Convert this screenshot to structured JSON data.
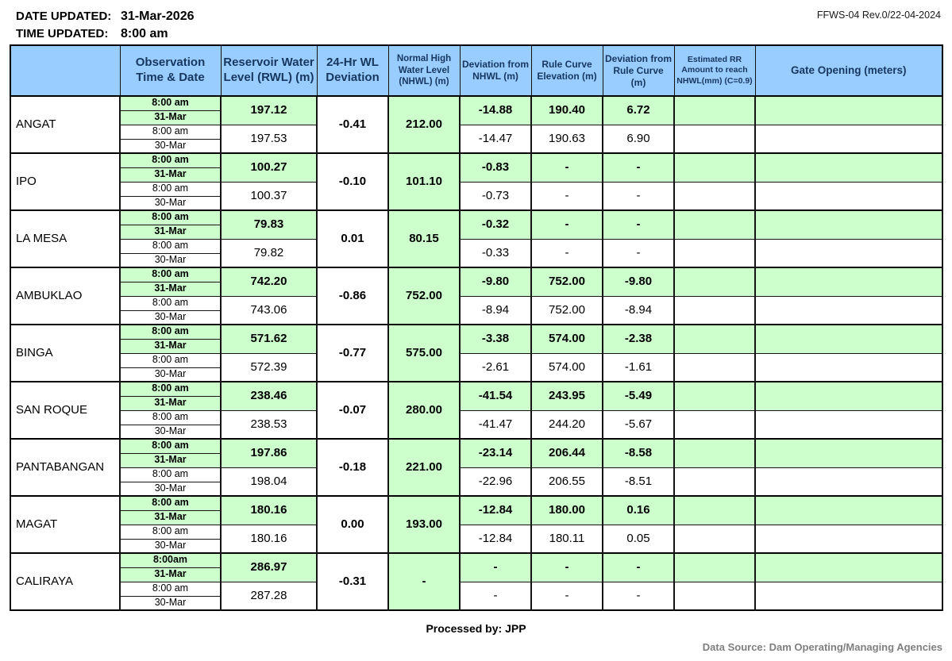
{
  "meta": {
    "date_updated_label": "DATE UPDATED:",
    "date_updated": "31-Mar-2026",
    "time_updated_label": "TIME UPDATED:",
    "time_updated": "8:00 am",
    "form_ref": "FFWS-04 Rev.0/22-04-2024",
    "processed_by": "Processed by: JPP",
    "data_source": "Data Source: Dam Operating/Managing Agencies"
  },
  "colors": {
    "header_bg": "#99ccff",
    "header_text": "#17375e",
    "highlight_green": "#ccffcc",
    "border": "#000000",
    "source_text": "#7f7f7f"
  },
  "table": {
    "headers": [
      {
        "label": "",
        "name": "col-header-dam"
      },
      {
        "label": "Observation Time & Date",
        "name": "col-header-observation-time-date"
      },
      {
        "label": "Reservoir Water Level (RWL) (m)",
        "name": "col-header-rwl"
      },
      {
        "label": "24-Hr WL Deviation",
        "name": "col-header-24hr-wl-deviation"
      },
      {
        "label": "Normal High Water Level (NHWL) (m)",
        "name": "col-header-nhwl"
      },
      {
        "label": "Deviation from NHWL (m)",
        "name": "col-header-deviation-from-nhwl"
      },
      {
        "label": "Rule Curve Elevation (m)",
        "name": "col-header-rule-curve-elevation"
      },
      {
        "label": "Deviation from Rule Curve (m)",
        "name": "col-header-deviation-from-rule-curve"
      },
      {
        "label": "Estimated RR Amount to reach NHWL(mm) (C=0.9)",
        "name": "col-header-estimated-rr"
      },
      {
        "label": "Gate Opening (meters)",
        "name": "col-header-gate-opening"
      }
    ],
    "rows": [
      {
        "dam": "ANGAT",
        "obs": [
          "8:00 am",
          "31-Mar",
          "8:00 am",
          "30-Mar"
        ],
        "rwl": [
          "197.12",
          "197.53"
        ],
        "wl_dev_24hr": "-0.41",
        "nhwl": "212.00",
        "dev_nhwl": [
          "-14.88",
          "-14.47"
        ],
        "rule_curve": [
          "190.40",
          "190.63"
        ],
        "dev_rule_curve": [
          "6.72",
          "6.90"
        ],
        "est_rr": [
          "",
          ""
        ],
        "gate": [
          "",
          ""
        ]
      },
      {
        "dam": "IPO",
        "obs": [
          "8:00 am",
          "31-Mar",
          "8:00 am",
          "30-Mar"
        ],
        "rwl": [
          "100.27",
          "100.37"
        ],
        "wl_dev_24hr": "-0.10",
        "nhwl": "101.10",
        "dev_nhwl": [
          "-0.83",
          "-0.73"
        ],
        "rule_curve": [
          "-",
          "-"
        ],
        "dev_rule_curve": [
          "-",
          "-"
        ],
        "est_rr": [
          "",
          ""
        ],
        "gate": [
          "",
          ""
        ]
      },
      {
        "dam": "LA MESA",
        "obs": [
          "8:00 am",
          "31-Mar",
          "8:00 am",
          "30-Mar"
        ],
        "rwl": [
          "79.83",
          "79.82"
        ],
        "wl_dev_24hr": "0.01",
        "nhwl": "80.15",
        "dev_nhwl": [
          "-0.32",
          "-0.33"
        ],
        "rule_curve": [
          "-",
          "-"
        ],
        "dev_rule_curve": [
          "-",
          "-"
        ],
        "est_rr": [
          "",
          ""
        ],
        "gate": [
          "",
          ""
        ]
      },
      {
        "dam": "AMBUKLAO",
        "obs": [
          "8:00 am",
          "31-Mar",
          "8:00 am",
          "30-Mar"
        ],
        "rwl": [
          "742.20",
          "743.06"
        ],
        "wl_dev_24hr": "-0.86",
        "nhwl": "752.00",
        "dev_nhwl": [
          "-9.80",
          "-8.94"
        ],
        "rule_curve": [
          "752.00",
          "752.00"
        ],
        "dev_rule_curve": [
          "-9.80",
          "-8.94"
        ],
        "est_rr": [
          "",
          ""
        ],
        "gate": [
          "",
          ""
        ]
      },
      {
        "dam": "BINGA",
        "obs": [
          "8:00 am",
          "31-Mar",
          "8:00 am",
          "30-Mar"
        ],
        "rwl": [
          "571.62",
          "572.39"
        ],
        "wl_dev_24hr": "-0.77",
        "nhwl": "575.00",
        "dev_nhwl": [
          "-3.38",
          "-2.61"
        ],
        "rule_curve": [
          "574.00",
          "574.00"
        ],
        "dev_rule_curve": [
          "-2.38",
          "-1.61"
        ],
        "est_rr": [
          "",
          ""
        ],
        "gate": [
          "",
          ""
        ]
      },
      {
        "dam": "SAN ROQUE",
        "obs": [
          "8:00 am",
          "31-Mar",
          "8:00 am",
          "30-Mar"
        ],
        "rwl": [
          "238.46",
          "238.53"
        ],
        "wl_dev_24hr": "-0.07",
        "nhwl": "280.00",
        "dev_nhwl": [
          "-41.54",
          "-41.47"
        ],
        "rule_curve": [
          "243.95",
          "244.20"
        ],
        "dev_rule_curve": [
          "-5.49",
          "-5.67"
        ],
        "est_rr": [
          "",
          ""
        ],
        "gate": [
          "",
          ""
        ]
      },
      {
        "dam": "PANTABANGAN",
        "obs": [
          "8:00 am",
          "31-Mar",
          "8:00 am",
          "30-Mar"
        ],
        "rwl": [
          "197.86",
          "198.04"
        ],
        "wl_dev_24hr": "-0.18",
        "nhwl": "221.00",
        "dev_nhwl": [
          "-23.14",
          "-22.96"
        ],
        "rule_curve": [
          "206.44",
          "206.55"
        ],
        "dev_rule_curve": [
          "-8.58",
          "-8.51"
        ],
        "est_rr": [
          "",
          ""
        ],
        "gate": [
          "",
          ""
        ]
      },
      {
        "dam": "MAGAT",
        "obs": [
          "8:00 am",
          "31-Mar",
          "8:00 am",
          "30-Mar"
        ],
        "rwl": [
          "180.16",
          "180.16"
        ],
        "wl_dev_24hr": "0.00",
        "nhwl": "193.00",
        "dev_nhwl": [
          "-12.84",
          "-12.84"
        ],
        "rule_curve": [
          "180.00",
          "180.11"
        ],
        "dev_rule_curve": [
          "0.16",
          "0.05"
        ],
        "est_rr": [
          "",
          ""
        ],
        "gate": [
          "",
          ""
        ]
      },
      {
        "dam": "CALIRAYA",
        "obs": [
          "8:00am",
          "31-Mar",
          "8:00 am",
          "30-Mar"
        ],
        "rwl": [
          "286.97",
          "287.28"
        ],
        "wl_dev_24hr": "-0.31",
        "nhwl": "-",
        "dev_nhwl": [
          "-",
          "-"
        ],
        "rule_curve": [
          "-",
          "-"
        ],
        "dev_rule_curve": [
          "-",
          "-"
        ],
        "est_rr": [
          "",
          ""
        ],
        "gate": [
          "",
          ""
        ]
      }
    ]
  }
}
